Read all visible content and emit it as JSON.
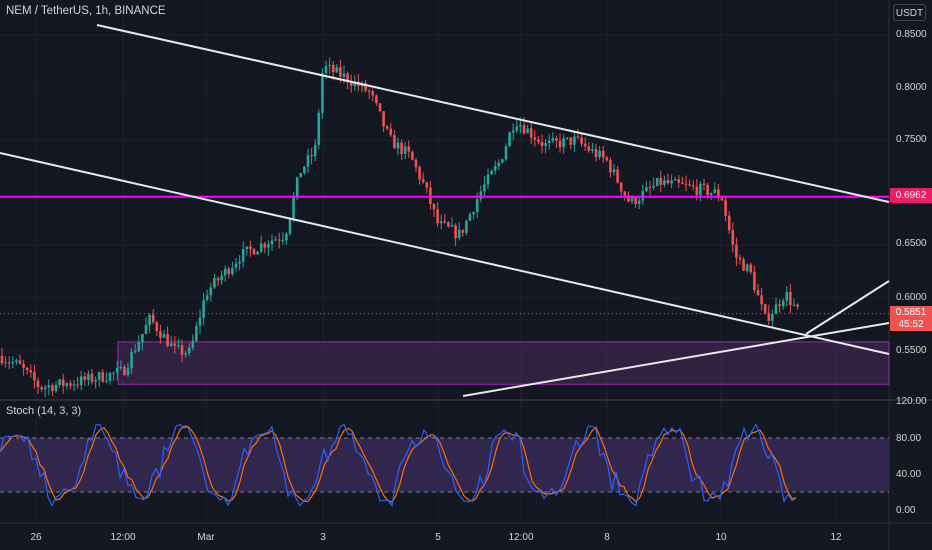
{
  "header": {
    "symbol_line": "NEM / TetherUS, 1h, BINANCE",
    "currency_button": "USDT"
  },
  "indicator": {
    "label": "Stoch (14, 3, 3)",
    "axis_labels": [
      "120.00",
      "80.00",
      "40.00",
      "0.00"
    ]
  },
  "price_axis": {
    "labels": [
      "0.8500",
      "0.8000",
      "0.7500",
      "0.6500",
      "0.6000",
      "0.5500"
    ],
    "horizontal_level_tag": "0.6962",
    "last_price_tag": "0.5851",
    "countdown_tag": "45:52"
  },
  "time_axis": {
    "labels": [
      "26",
      "12:00",
      "Mar",
      "3",
      "5",
      "12:00",
      "8",
      "10",
      "12"
    ]
  },
  "colors": {
    "background": "#131722",
    "bullish": "#26a69a",
    "bearish": "#ef5350",
    "trendline": "#e8e8e8",
    "horizontal_level": "#ff00ff",
    "zone_fill": "#4a2a5a",
    "stoch_k": "#2962ff",
    "stoch_d": "#ff6d00",
    "stoch_band": "#3a2a5a"
  },
  "chart_data": {
    "type": "candlestick",
    "symbol": "NEM / TetherUS",
    "interval": "1h",
    "exchange": "BINANCE",
    "x_labels": [
      "26",
      "12:00",
      "Mar",
      "3",
      "5",
      "12:00",
      "8",
      "10",
      "12"
    ],
    "ylim": [
      0.5,
      0.87
    ],
    "close_path": [
      {
        "t": "26",
        "close": 0.545
      },
      {
        "t": "12:00",
        "close": 0.53
      },
      {
        "t": "Mar",
        "close": 0.605
      },
      {
        "t": "3",
        "close": 0.82
      },
      {
        "t": "5",
        "close": 0.675
      },
      {
        "t": "12:00",
        "close": 0.765
      },
      {
        "t": "8",
        "close": 0.73
      },
      {
        "t": "10",
        "close": 0.695
      },
      {
        "t": "last",
        "close": 0.5851
      }
    ],
    "horizontal_level": 0.6962,
    "last_price": 0.5851,
    "stochastic": {
      "params": "14, 3, 3",
      "upper_band": 80,
      "lower_band": 20,
      "axis_ticks": [
        120,
        80,
        40,
        0
      ]
    }
  }
}
